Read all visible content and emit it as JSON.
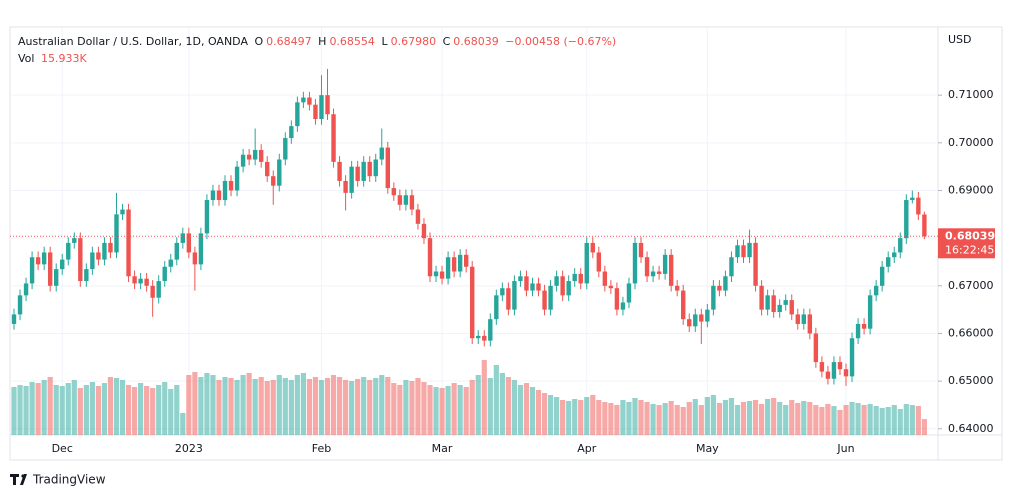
{
  "chart_data": {
    "type": "candlestick",
    "header": {
      "symbol": "Australian Dollar / U.S. Dollar, 1D, OANDA",
      "o_label": "O",
      "open": "0.68497",
      "h_label": "H",
      "high": "0.68554",
      "l_label": "L",
      "low": "0.67980",
      "c_label": "C",
      "close": "0.68039",
      "change": "−0.00458 (−0.67%)",
      "vol_label": "Vol",
      "vol": "15.933K"
    },
    "currency": "USD",
    "countdown": "16:22:45",
    "brand": "TradingView",
    "up_color": "#26a69a",
    "down_color": "#ef5350",
    "ylim": [
      0.6387,
      0.7243
    ],
    "yticks": [
      {
        "value": 0.64,
        "label": "0.64000"
      },
      {
        "value": 0.65,
        "label": "0.65000"
      },
      {
        "value": 0.66,
        "label": "0.66000"
      },
      {
        "value": 0.67,
        "label": "0.67000"
      },
      {
        "value": 0.68,
        "label": "0.68000"
      },
      {
        "value": 0.69,
        "label": "0.69000"
      },
      {
        "value": 0.7,
        "label": "0.70000"
      },
      {
        "value": 0.71,
        "label": "0.71000"
      }
    ],
    "grid": true,
    "categories": [
      null,
      null,
      null,
      null,
      null,
      null,
      null,
      null,
      "Dec",
      null,
      null,
      null,
      null,
      null,
      null,
      null,
      null,
      null,
      null,
      null,
      null,
      null,
      null,
      null,
      null,
      null,
      null,
      null,
      null,
      "2023",
      null,
      null,
      null,
      null,
      null,
      null,
      null,
      null,
      null,
      null,
      null,
      null,
      null,
      null,
      null,
      null,
      null,
      null,
      null,
      null,
      null,
      "Feb",
      null,
      null,
      null,
      null,
      null,
      null,
      null,
      null,
      null,
      null,
      null,
      null,
      null,
      null,
      null,
      null,
      null,
      null,
      null,
      "Mar",
      null,
      null,
      null,
      null,
      null,
      null,
      null,
      null,
      null,
      null,
      null,
      null,
      null,
      null,
      null,
      null,
      null,
      null,
      null,
      null,
      null,
      null,
      null,
      "Apr",
      null,
      null,
      null,
      null,
      null,
      null,
      null,
      null,
      null,
      null,
      null,
      null,
      null,
      null,
      null,
      null,
      null,
      null,
      null,
      "May",
      null,
      null,
      null,
      null,
      null,
      null,
      null,
      null,
      null,
      null,
      null,
      null,
      null,
      null,
      null,
      null,
      null,
      null,
      null,
      null,
      null,
      null,
      "Jun",
      null,
      null,
      null,
      null,
      null,
      null,
      null,
      null,
      null,
      null,
      null,
      null,
      null
    ],
    "open": [
      0.662,
      0.664,
      0.668,
      0.6705,
      0.676,
      0.6745,
      0.677,
      0.67,
      0.6735,
      0.6755,
      0.679,
      0.68,
      0.671,
      0.6735,
      0.677,
      0.6755,
      0.679,
      0.677,
      0.685,
      0.686,
      0.672,
      0.6705,
      0.6715,
      0.67,
      0.6675,
      0.671,
      0.674,
      0.6755,
      0.679,
      0.681,
      0.677,
      0.6745,
      0.681,
      0.688,
      0.69,
      0.688,
      0.692,
      0.69,
      0.695,
      0.6975,
      0.6965,
      0.6985,
      0.696,
      0.693,
      0.691,
      0.6965,
      0.701,
      0.7035,
      0.7085,
      0.7095,
      0.708,
      0.705,
      0.71,
      0.706,
      0.696,
      0.692,
      0.6895,
      0.695,
      0.692,
      0.696,
      0.693,
      0.6965,
      0.699,
      0.6905,
      0.689,
      0.687,
      0.689,
      0.686,
      0.683,
      0.68,
      0.672,
      0.673,
      0.6715,
      0.676,
      0.673,
      0.6765,
      0.674,
      0.659,
      0.6595,
      0.6585,
      0.663,
      0.668,
      0.6695,
      0.665,
      0.671,
      0.672,
      0.669,
      0.6705,
      0.669,
      0.665,
      0.67,
      0.672,
      0.668,
      0.671,
      0.6725,
      0.6705,
      0.679,
      0.677,
      0.673,
      0.67,
      0.6695,
      0.665,
      0.6665,
      0.6705,
      0.679,
      0.676,
      0.672,
      0.673,
      0.6725,
      0.6765,
      0.67,
      0.669,
      0.663,
      0.6615,
      0.664,
      0.6625,
      0.665,
      0.67,
      0.669,
      0.672,
      0.676,
      0.6785,
      0.676,
      0.679,
      0.67,
      0.665,
      0.668,
      0.6645,
      0.666,
      0.667,
      0.664,
      0.662,
      0.664,
      0.66,
      0.654,
      0.652,
      0.6505,
      0.654,
      0.6525,
      0.651,
      0.659,
      0.662,
      0.661,
      0.668,
      0.67,
      0.674,
      0.676,
      0.677,
      0.68,
      0.688,
      0.6885,
      0.68497
    ],
    "high": [
      0.6652,
      0.6692,
      0.6717,
      0.6772,
      0.6772,
      0.6782,
      0.6782,
      0.6747,
      0.6767,
      0.6802,
      0.6812,
      0.6812,
      0.6747,
      0.6782,
      0.6782,
      0.6802,
      0.6802,
      0.6895,
      0.6872,
      0.6872,
      0.6732,
      0.6727,
      0.6727,
      0.6712,
      0.6722,
      0.6752,
      0.6767,
      0.6802,
      0.6822,
      0.6822,
      0.6782,
      0.6822,
      0.6892,
      0.6912,
      0.6912,
      0.6932,
      0.6932,
      0.6962,
      0.6987,
      0.6987,
      0.703,
      0.6997,
      0.6972,
      0.6942,
      0.6977,
      0.7022,
      0.7047,
      0.7097,
      0.7107,
      0.7107,
      0.7092,
      0.7142,
      0.7155,
      0.7072,
      0.6972,
      0.6932,
      0.6962,
      0.6962,
      0.6972,
      0.6972,
      0.6977,
      0.703,
      0.7002,
      0.6917,
      0.6902,
      0.6902,
      0.6902,
      0.6872,
      0.6842,
      0.6812,
      0.6742,
      0.6742,
      0.6772,
      0.6772,
      0.6777,
      0.6777,
      0.6752,
      0.6607,
      0.6607,
      0.6642,
      0.6692,
      0.6707,
      0.6707,
      0.6722,
      0.6732,
      0.6732,
      0.6717,
      0.6717,
      0.6702,
      0.6712,
      0.6732,
      0.6732,
      0.6722,
      0.6737,
      0.6737,
      0.6802,
      0.6802,
      0.6782,
      0.6742,
      0.6712,
      0.6707,
      0.6677,
      0.6717,
      0.6802,
      0.6802,
      0.6772,
      0.6742,
      0.6742,
      0.6777,
      0.6777,
      0.6712,
      0.6702,
      0.6642,
      0.6652,
      0.6652,
      0.6662,
      0.6712,
      0.6712,
      0.6732,
      0.6772,
      0.6797,
      0.6797,
      0.6818,
      0.6802,
      0.6712,
      0.6692,
      0.6692,
      0.6672,
      0.6682,
      0.6682,
      0.6652,
      0.6652,
      0.6652,
      0.6612,
      0.6552,
      0.6532,
      0.6552,
      0.6552,
      0.6537,
      0.6602,
      0.6632,
      0.6632,
      0.6692,
      0.6712,
      0.6752,
      0.6772,
      0.6782,
      0.6812,
      0.6892,
      0.69,
      0.6897,
      0.68554
    ],
    "low": [
      0.6608,
      0.6628,
      0.6668,
      0.6693,
      0.6733,
      0.6733,
      0.6688,
      0.6688,
      0.6723,
      0.6743,
      0.6778,
      0.6698,
      0.6698,
      0.6723,
      0.6743,
      0.6743,
      0.6758,
      0.6758,
      0.6838,
      0.6708,
      0.6693,
      0.6693,
      0.6688,
      0.6635,
      0.6663,
      0.6698,
      0.6728,
      0.6743,
      0.6778,
      0.6758,
      0.669,
      0.6733,
      0.6798,
      0.6868,
      0.6868,
      0.6868,
      0.6888,
      0.6888,
      0.6938,
      0.6953,
      0.6953,
      0.6948,
      0.6918,
      0.687,
      0.6898,
      0.6953,
      0.6998,
      0.7023,
      0.7073,
      0.7068,
      0.7038,
      0.7038,
      0.7048,
      0.6948,
      0.6908,
      0.6858,
      0.6883,
      0.6908,
      0.6908,
      0.6918,
      0.6918,
      0.6953,
      0.6893,
      0.6878,
      0.6858,
      0.6858,
      0.6848,
      0.6818,
      0.6788,
      0.6708,
      0.6708,
      0.6703,
      0.6703,
      0.6718,
      0.6718,
      0.6728,
      0.6578,
      0.6578,
      0.6573,
      0.6573,
      0.6618,
      0.6668,
      0.6638,
      0.6638,
      0.6698,
      0.6678,
      0.6678,
      0.6678,
      0.6638,
      0.6638,
      0.6688,
      0.6668,
      0.6668,
      0.6698,
      0.6693,
      0.6693,
      0.6758,
      0.6718,
      0.6688,
      0.6683,
      0.6638,
      0.6638,
      0.6653,
      0.6693,
      0.6748,
      0.6708,
      0.6708,
      0.6713,
      0.6713,
      0.6688,
      0.6678,
      0.6618,
      0.6603,
      0.6603,
      0.6578,
      0.6613,
      0.6638,
      0.6678,
      0.6678,
      0.6708,
      0.6748,
      0.6748,
      0.6748,
      0.6688,
      0.6638,
      0.6638,
      0.6633,
      0.6633,
      0.6648,
      0.6628,
      0.6608,
      0.6608,
      0.6588,
      0.6528,
      0.6508,
      0.6493,
      0.6493,
      0.6513,
      0.649,
      0.6498,
      0.6578,
      0.6598,
      0.6598,
      0.6668,
      0.6688,
      0.6728,
      0.6748,
      0.6758,
      0.6788,
      0.6873,
      0.6838,
      0.6798
    ],
    "close": [
      0.664,
      0.668,
      0.6705,
      0.676,
      0.6745,
      0.677,
      0.67,
      0.6735,
      0.6755,
      0.679,
      0.68,
      0.671,
      0.6735,
      0.677,
      0.6755,
      0.679,
      0.677,
      0.685,
      0.686,
      0.672,
      0.6705,
      0.6715,
      0.67,
      0.6675,
      0.671,
      0.674,
      0.6755,
      0.679,
      0.681,
      0.677,
      0.6745,
      0.681,
      0.688,
      0.69,
      0.688,
      0.692,
      0.69,
      0.695,
      0.6975,
      0.6965,
      0.6985,
      0.696,
      0.693,
      0.691,
      0.6965,
      0.701,
      0.7035,
      0.7085,
      0.7095,
      0.708,
      0.705,
      0.71,
      0.706,
      0.696,
      0.692,
      0.6895,
      0.695,
      0.692,
      0.696,
      0.693,
      0.6965,
      0.699,
      0.6905,
      0.689,
      0.687,
      0.689,
      0.686,
      0.683,
      0.68,
      0.672,
      0.673,
      0.6715,
      0.676,
      0.673,
      0.6765,
      0.674,
      0.659,
      0.6595,
      0.6585,
      0.663,
      0.668,
      0.6695,
      0.665,
      0.671,
      0.672,
      0.669,
      0.6705,
      0.669,
      0.665,
      0.67,
      0.672,
      0.668,
      0.671,
      0.6725,
      0.6705,
      0.679,
      0.677,
      0.673,
      0.67,
      0.6695,
      0.665,
      0.6665,
      0.6705,
      0.679,
      0.676,
      0.672,
      0.673,
      0.6725,
      0.6765,
      0.67,
      0.669,
      0.663,
      0.6615,
      0.664,
      0.6625,
      0.665,
      0.67,
      0.669,
      0.672,
      0.676,
      0.6785,
      0.676,
      0.679,
      0.67,
      0.665,
      0.668,
      0.6645,
      0.666,
      0.667,
      0.664,
      0.662,
      0.664,
      0.66,
      0.654,
      0.652,
      0.6505,
      0.654,
      0.6525,
      0.651,
      0.659,
      0.662,
      0.661,
      0.668,
      0.67,
      0.674,
      0.676,
      0.677,
      0.68,
      0.688,
      0.6885,
      0.68497,
      0.68039
    ],
    "volume": [
      48,
      50,
      49,
      53,
      52,
      55,
      58,
      50,
      49,
      52,
      55,
      47,
      50,
      53,
      49,
      52,
      58,
      57,
      55,
      50,
      48,
      52,
      49,
      47,
      50,
      53,
      46,
      50,
      22,
      60,
      63,
      58,
      62,
      60,
      55,
      58,
      57,
      55,
      60,
      62,
      56,
      58,
      54,
      55,
      60,
      57,
      55,
      60,
      62,
      56,
      58,
      55,
      57,
      60,
      58,
      55,
      54,
      56,
      58,
      55,
      57,
      60,
      58,
      52,
      50,
      55,
      54,
      57,
      53,
      50,
      48,
      47,
      49,
      52,
      50,
      48,
      55,
      60,
      75,
      57,
      70,
      62,
      58,
      55,
      50,
      52,
      48,
      45,
      42,
      40,
      38,
      35,
      34,
      36,
      35,
      38,
      40,
      35,
      33,
      32,
      30,
      35,
      33,
      37,
      35,
      33,
      31,
      30,
      32,
      34,
      30,
      28,
      33,
      36,
      30,
      38,
      40,
      32,
      35,
      37,
      30,
      33,
      34,
      35,
      31,
      36,
      37,
      33,
      30,
      35,
      32,
      34,
      33,
      30,
      28,
      31,
      29,
      25,
      30,
      33,
      32,
      30,
      31,
      29,
      27,
      28,
      30,
      26,
      31,
      30,
      29,
      15.933
    ]
  }
}
